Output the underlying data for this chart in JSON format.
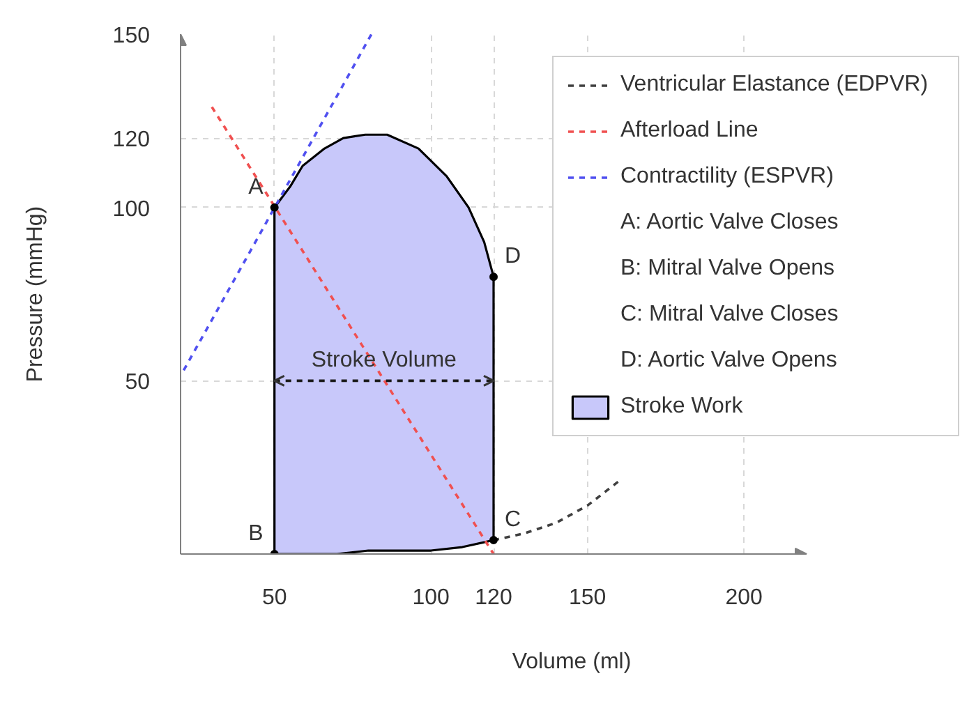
{
  "chart_data": {
    "type": "line",
    "xlabel": "Volume (ml)",
    "ylabel": "Pressure (mmHg)",
    "xlim": [
      20,
      220
    ],
    "ylim": [
      0,
      150
    ],
    "xticks": [
      50,
      100,
      120,
      150,
      200
    ],
    "yticks": [
      50,
      100,
      120,
      150
    ],
    "grid": true,
    "legend": "top right",
    "series": [
      {
        "name": "Ventricular Elastance (EDPVR)",
        "line_style": "dashed",
        "color": "#404040",
        "x": [
          120,
          130,
          140,
          150,
          160
        ],
        "values": [
          4,
          6,
          9,
          14,
          21
        ]
      },
      {
        "name": "Afterload Line",
        "line_style": "dashed",
        "color": "#f05050",
        "x": [
          30,
          120
        ],
        "values": [
          129,
          0
        ]
      },
      {
        "name": "Contractility (ESPVR)",
        "line_style": "dashed",
        "color": "#5050f0",
        "x": [
          21,
          81
        ],
        "values": [
          53,
          150
        ]
      },
      {
        "name": "Stroke Work",
        "type": "area",
        "color": "#c8c8fa",
        "x": [
          50,
          55,
          59,
          66,
          72,
          79,
          86,
          96,
          105,
          112,
          117,
          120,
          120,
          110,
          100,
          90,
          80,
          70,
          60,
          50
        ],
        "values": [
          100,
          106,
          112,
          117,
          120,
          121,
          121,
          117,
          109,
          100,
          90,
          80,
          4,
          2,
          1,
          1,
          1,
          0,
          0,
          0
        ]
      },
      {
        "type": "scatter",
        "marker": "circle",
        "color": "#000000",
        "x": [
          50,
          50,
          120,
          120
        ],
        "values": [
          100,
          0,
          4,
          80
        ]
      },
      {
        "line_style": "dashed",
        "color": "#1a1a1a",
        "x": [
          50,
          120
        ],
        "values": [
          50,
          50
        ]
      }
    ],
    "annotations": [
      {
        "text": "A",
        "x": 50,
        "y": 100
      },
      {
        "text": "B",
        "x": 50,
        "y": 0
      },
      {
        "text": "C",
        "x": 120,
        "y": 4
      },
      {
        "text": "D",
        "x": 120,
        "y": 80
      },
      {
        "text": "Stroke Volume",
        "x": 85,
        "y": 50
      },
      "A: Aortic Valve Closes",
      "B: Mitral Valve Opens",
      "C: Mitral Valve Closes",
      "D: Aortic Valve Opens"
    ]
  }
}
